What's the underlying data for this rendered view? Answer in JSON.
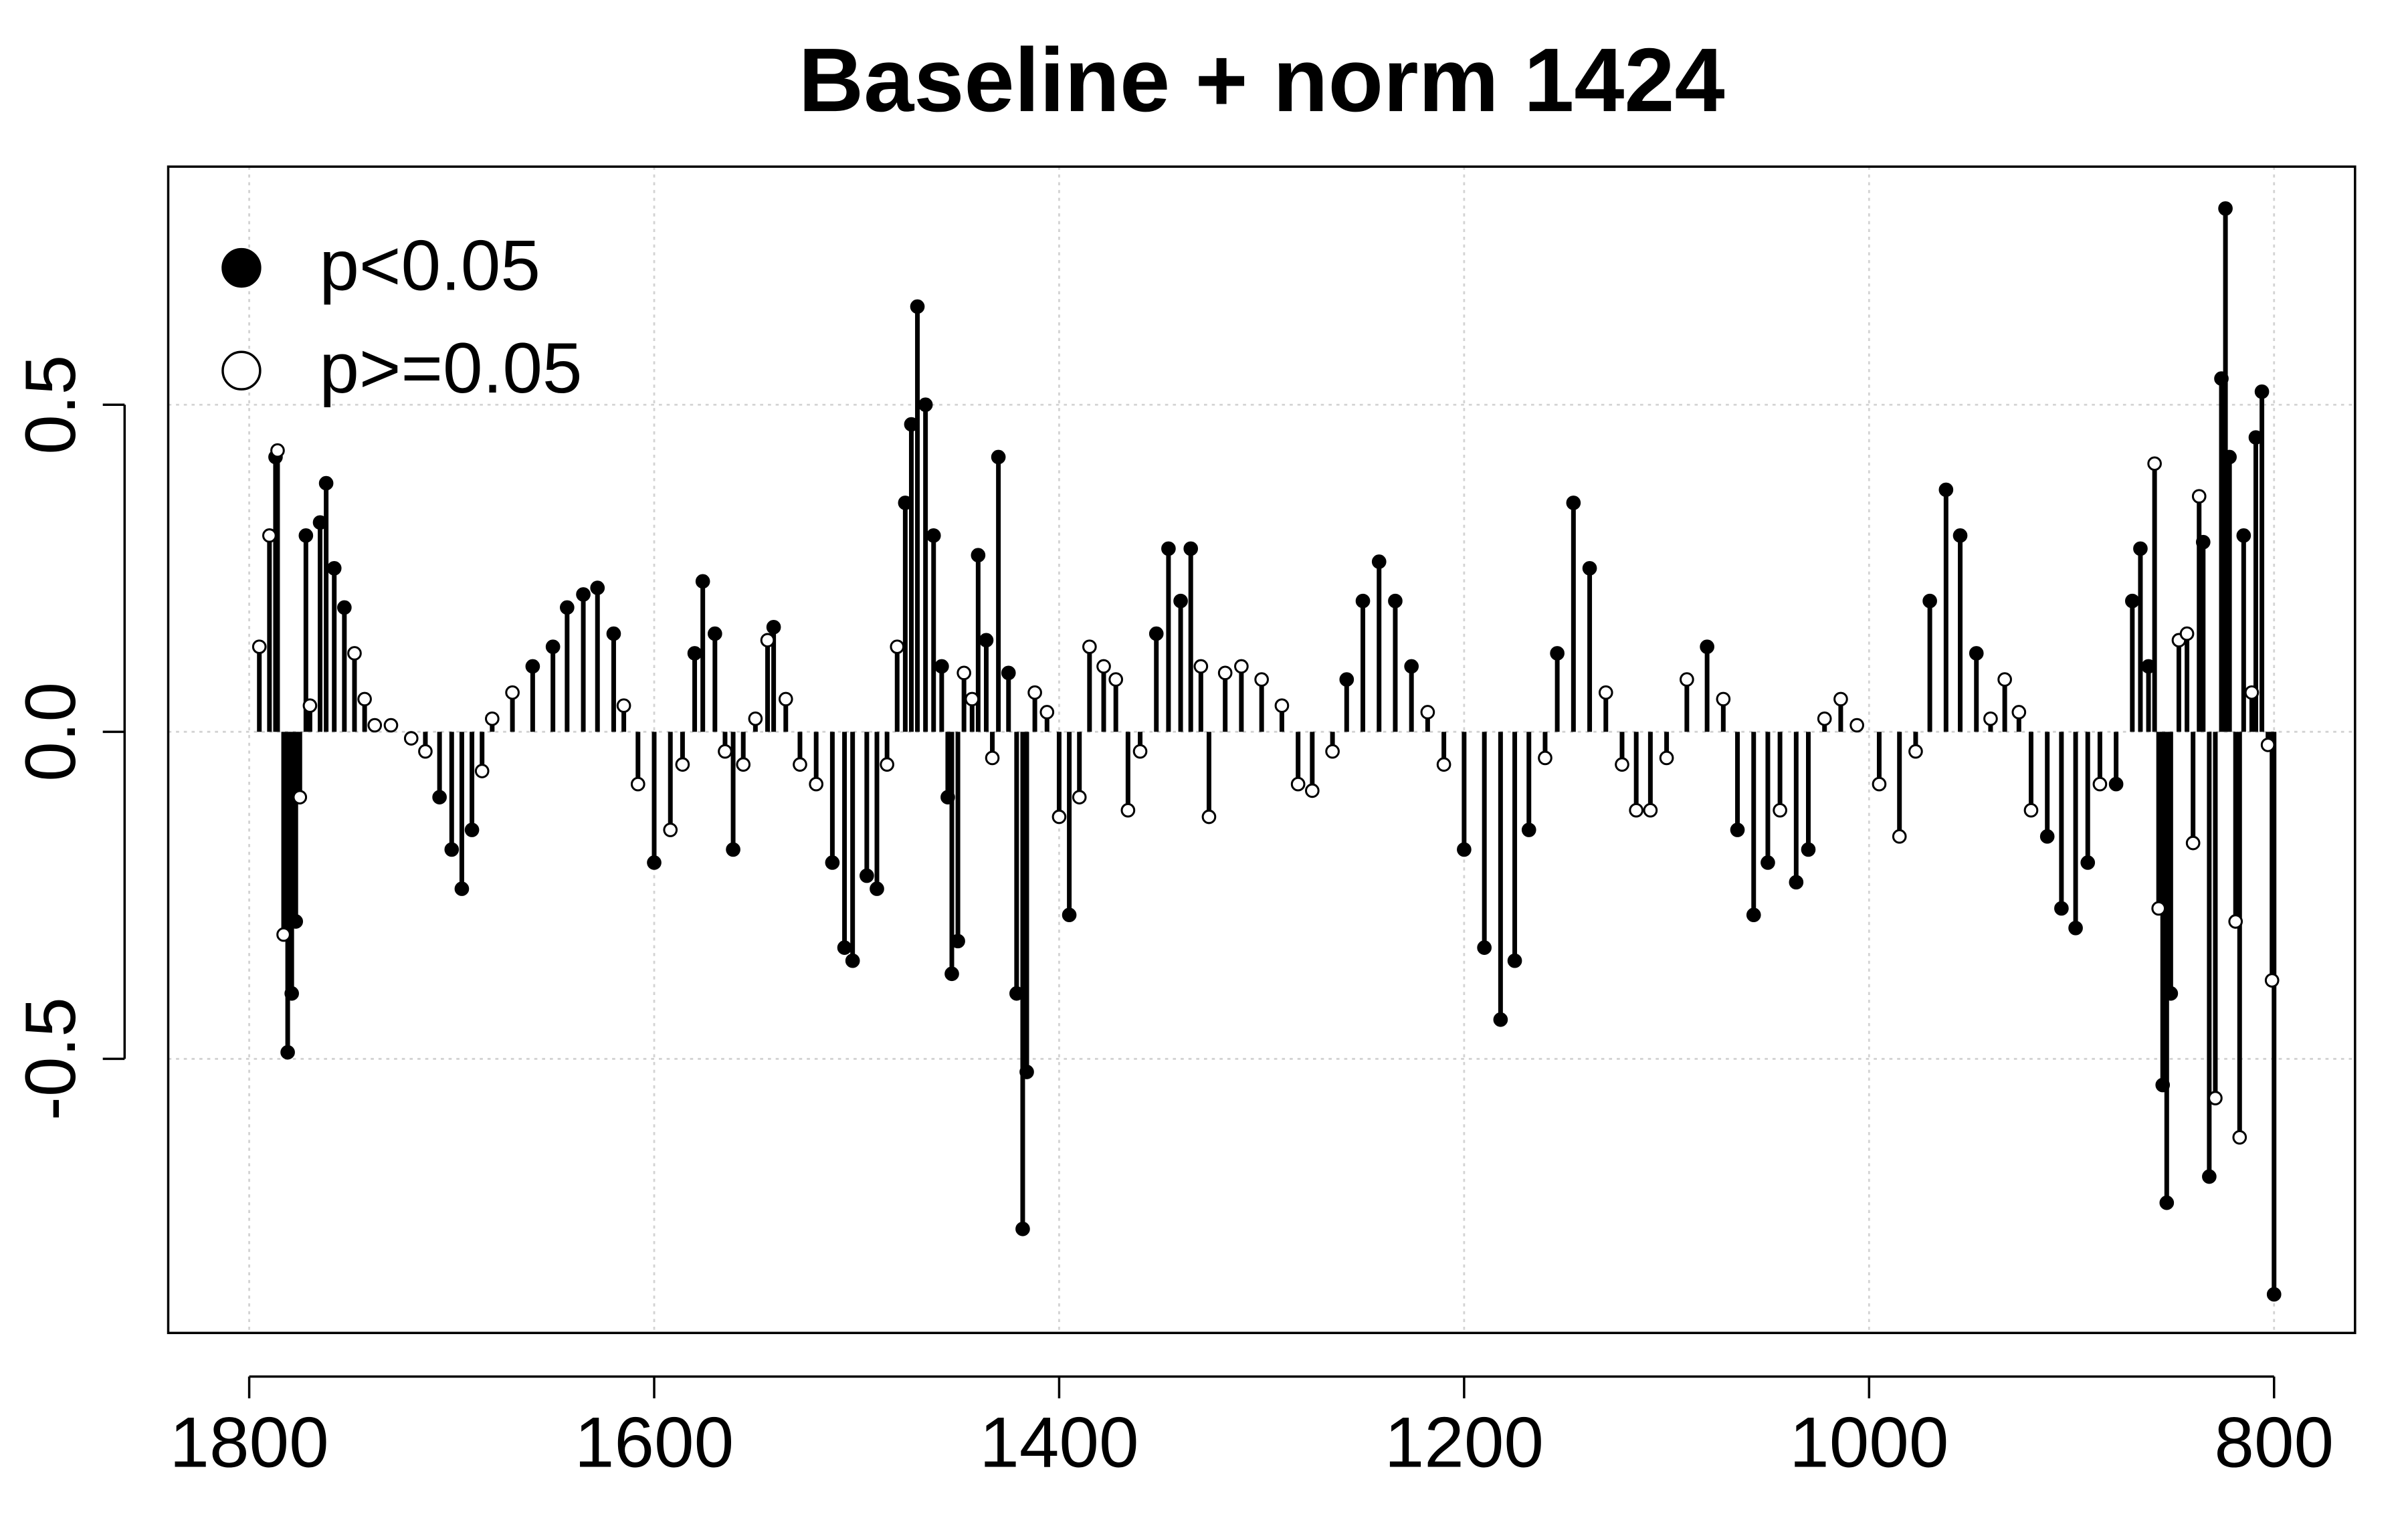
{
  "chart_data": {
    "type": "spike-scatter",
    "title": "Baseline + norm 1424",
    "xlim": [
      1840,
      760
    ],
    "xticks": [
      1800,
      1600,
      1400,
      1200,
      1000,
      800
    ],
    "ylim": [
      -0.919,
      0.864
    ],
    "yticks": [
      -0.5,
      {
        "value": 0,
        "label": "0.0"
      },
      0.5
    ],
    "grid": true,
    "legend": "topleft",
    "series": [
      {
        "name": "p<0.05",
        "color": "#000000",
        "marker": "filled",
        "x": [
          1787,
          1781,
          1779,
          1777,
          1772,
          1765,
          1762,
          1758,
          1753,
          1706,
          1700,
          1695,
          1690,
          1660,
          1650,
          1643,
          1635,
          1628,
          1620,
          1600,
          1580,
          1576,
          1570,
          1561,
          1541,
          1512,
          1506,
          1502,
          1495,
          1490,
          1476,
          1473,
          1470,
          1466,
          1462,
          1458,
          1455,
          1453,
          1450,
          1440,
          1436,
          1430,
          1425,
          1421,
          1418,
          1416,
          1395,
          1352,
          1346,
          1340,
          1335,
          1258,
          1250,
          1242,
          1234,
          1226,
          1200,
          1190,
          1182,
          1175,
          1168,
          1154,
          1146,
          1138,
          1080,
          1065,
          1057,
          1050,
          1036,
          1030,
          970,
          962,
          955,
          947,
          912,
          905,
          898,
          892,
          878,
          870,
          866,
          862,
          855,
          853,
          851,
          835,
          832,
          826,
          824,
          822,
          815,
          809,
          806,
          800
        ],
        "values": [
          0.42,
          -0.49,
          -0.4,
          -0.29,
          0.3,
          0.32,
          0.38,
          0.25,
          0.19,
          -0.1,
          -0.18,
          -0.24,
          -0.15,
          0.1,
          0.13,
          0.19,
          0.21,
          0.22,
          0.15,
          -0.2,
          0.12,
          0.23,
          0.15,
          -0.18,
          0.16,
          -0.2,
          -0.33,
          -0.35,
          -0.22,
          -0.24,
          0.35,
          0.47,
          0.65,
          0.5,
          0.3,
          0.1,
          -0.1,
          -0.37,
          -0.32,
          0.27,
          0.14,
          0.42,
          0.09,
          -0.4,
          -0.76,
          -0.52,
          -0.28,
          0.15,
          0.28,
          0.2,
          0.28,
          0.08,
          0.2,
          0.26,
          0.2,
          0.1,
          -0.18,
          -0.33,
          -0.44,
          -0.35,
          -0.15,
          0.12,
          0.35,
          0.25,
          0.13,
          -0.15,
          -0.28,
          -0.2,
          -0.23,
          -0.18,
          0.2,
          0.37,
          0.3,
          0.12,
          -0.16,
          -0.27,
          -0.3,
          -0.2,
          -0.08,
          0.2,
          0.28,
          0.1,
          -0.54,
          -0.72,
          -0.4,
          0.29,
          -0.68,
          0.54,
          0.8,
          0.42,
          0.3,
          0.45,
          0.52,
          -0.86
        ]
      },
      {
        "name": "p>=0.05",
        "color": "#000000",
        "marker": "open",
        "x": [
          1795,
          1790,
          1786,
          1783,
          1775,
          1770,
          1748,
          1743,
          1738,
          1730,
          1720,
          1713,
          1685,
          1680,
          1670,
          1615,
          1608,
          1592,
          1586,
          1565,
          1556,
          1550,
          1544,
          1535,
          1528,
          1520,
          1485,
          1480,
          1447,
          1443,
          1433,
          1412,
          1406,
          1400,
          1390,
          1385,
          1378,
          1372,
          1366,
          1360,
          1330,
          1326,
          1318,
          1310,
          1300,
          1290,
          1282,
          1275,
          1265,
          1218,
          1210,
          1160,
          1130,
          1122,
          1115,
          1108,
          1100,
          1090,
          1072,
          1044,
          1022,
          1014,
          1006,
          995,
          985,
          977,
          940,
          933,
          926,
          920,
          886,
          859,
          857,
          847,
          843,
          840,
          837,
          829,
          819,
          817,
          811,
          803,
          801
        ],
        "values": [
          0.13,
          0.3,
          0.43,
          -0.31,
          -0.1,
          0.04,
          0.12,
          0.05,
          0.01,
          0.01,
          -0.01,
          -0.03,
          -0.06,
          0.02,
          0.06,
          0.04,
          -0.08,
          -0.15,
          -0.05,
          -0.03,
          -0.05,
          0.02,
          0.14,
          0.05,
          -0.05,
          -0.08,
          -0.05,
          0.13,
          0.09,
          0.05,
          -0.04,
          0.06,
          0.03,
          -0.13,
          -0.1,
          0.13,
          0.1,
          0.08,
          -0.12,
          -0.03,
          0.1,
          -0.13,
          0.09,
          0.1,
          0.08,
          0.04,
          -0.08,
          -0.09,
          -0.03,
          0.03,
          -0.05,
          -0.04,
          0.06,
          -0.05,
          -0.12,
          -0.12,
          -0.04,
          0.08,
          0.05,
          -0.12,
          0.02,
          0.05,
          0.01,
          -0.08,
          -0.16,
          -0.03,
          0.02,
          0.08,
          0.03,
          -0.12,
          -0.08,
          0.41,
          -0.27,
          0.14,
          0.15,
          -0.17,
          0.36,
          -0.56,
          -0.29,
          -0.62,
          0.06,
          -0.02,
          -0.38
        ]
      }
    ]
  }
}
